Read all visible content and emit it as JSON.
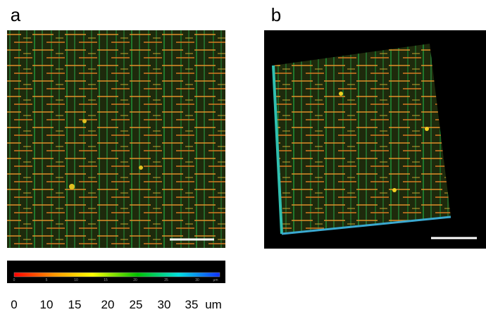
{
  "panels": [
    {
      "label": "a"
    },
    {
      "label": "b"
    }
  ],
  "colorbar": {
    "inner_labels": [
      "0",
      "5",
      "10",
      "15",
      "20",
      "25",
      "30",
      "μm"
    ],
    "labels": [
      "0",
      "10",
      "15",
      "20",
      "25",
      "30",
      "35",
      "um"
    ]
  }
}
